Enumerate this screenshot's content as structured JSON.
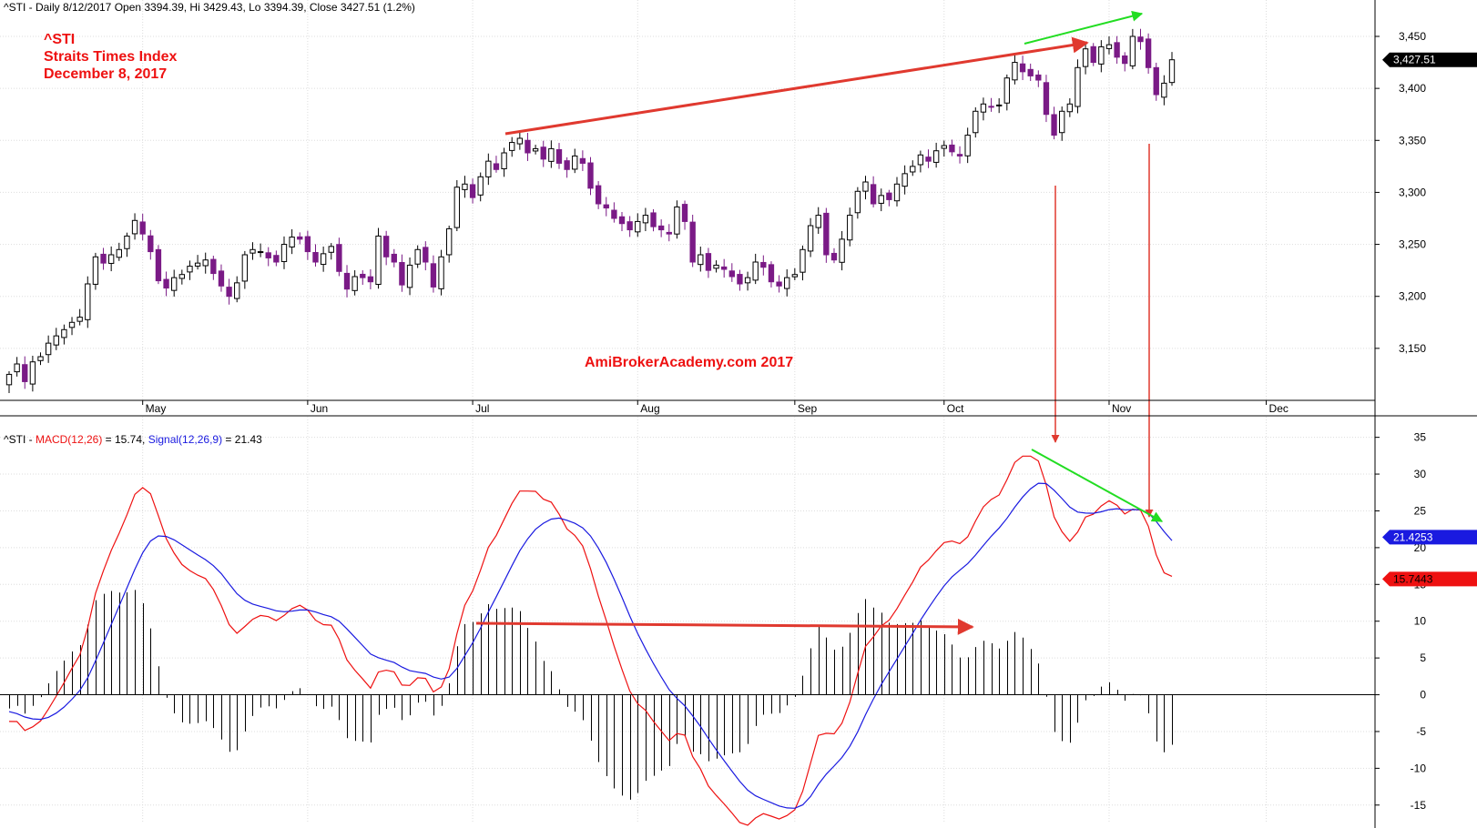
{
  "header": {
    "price_label": "^STI - Daily 8/12/2017 Open 3394.39, Hi 3429.43, Lo 3394.39, Close 3427.51 (1.2%)",
    "macd_prefix": "^STI - ",
    "macd_label": "MACD(12,26)",
    "macd_value": " = 15.74, ",
    "signal_label": "Signal(12,26,9)",
    "signal_value": " = 21.43"
  },
  "annotation": {
    "symbol": "^STI",
    "name": "Straits Times Index",
    "date": "December 8, 2017",
    "watermark": "AmiBrokerAcademy.com  2017"
  },
  "colors": {
    "bull_candle": "#ffffff",
    "bear_candle": "#7a1a86",
    "macd_line": "#ee1111",
    "signal_line": "#1a1ae0",
    "histogram": "#000000",
    "trend_red": "#e0392f",
    "trend_green": "#22dd22",
    "grid": "#dddddd"
  },
  "chart_data": [
    {
      "type": "candlestick",
      "title": "^STI - Daily 8/12/2017 Open 3394.39, Hi 3429.43, Lo 3394.39, Close 3427.51 (1.2%)",
      "x_ticks": [
        "May",
        "Jun",
        "Jul",
        "Aug",
        "Sep",
        "Oct",
        "Nov",
        "Dec"
      ],
      "x_tick_index": [
        17,
        38,
        59,
        80,
        100,
        119,
        140,
        160
      ],
      "y_ticks": [
        "3,150",
        "3,200",
        "3,250",
        "3,300",
        "3,350",
        "3,400",
        "3,450"
      ],
      "y_tick_values": [
        3150,
        3200,
        3250,
        3300,
        3350,
        3400,
        3450
      ],
      "ylim": [
        3100,
        3485
      ],
      "last_value_label": "3,427.51",
      "last_value": 3427.51,
      "grid": true,
      "closes": [
        3125,
        3135,
        3118,
        3137,
        3142,
        3155,
        3162,
        3168,
        3175,
        3180,
        3212,
        3238,
        3232,
        3240,
        3245,
        3258,
        3273,
        3260,
        3243,
        3215,
        3208,
        3218,
        3221,
        3229,
        3232,
        3235,
        3222,
        3210,
        3200,
        3213,
        3240,
        3245,
        3243,
        3237,
        3233,
        3250,
        3257,
        3255,
        3243,
        3233,
        3241,
        3248,
        3224,
        3207,
        3219,
        3218,
        3214,
        3258,
        3238,
        3233,
        3211,
        3230,
        3245,
        3233,
        3209,
        3238,
        3265,
        3305,
        3308,
        3295,
        3315,
        3330,
        3322,
        3338,
        3348,
        3352,
        3338,
        3342,
        3332,
        3342,
        3328,
        3322,
        3335,
        3328,
        3304,
        3289,
        3285,
        3275,
        3270,
        3264,
        3272,
        3278,
        3267,
        3264,
        3260,
        3286,
        3272,
        3233,
        3240,
        3225,
        3230,
        3226,
        3219,
        3212,
        3218,
        3233,
        3228,
        3214,
        3210,
        3218,
        3221,
        3245,
        3268,
        3278,
        3240,
        3235,
        3255,
        3278,
        3301,
        3310,
        3289,
        3297,
        3293,
        3308,
        3318,
        3325,
        3336,
        3330,
        3340,
        3345,
        3339,
        3335,
        3355,
        3378,
        3385,
        3382,
        3384,
        3410,
        3425,
        3416,
        3412,
        3408,
        3375,
        3355,
        3378,
        3385,
        3420,
        3438,
        3425,
        3440,
        3442,
        3430,
        3424,
        3450,
        3445,
        3420,
        3394,
        3405,
        3427.51
      ]
    },
    {
      "type": "line",
      "title": "^STI - MACD(12,26) = 15.74, Signal(12,26,9) = 21.43",
      "series": [
        {
          "name": "MACD(12,26)",
          "last": 15.74,
          "last_label": "15.7443"
        },
        {
          "name": "Signal(12,26,9)",
          "last": 21.43,
          "last_label": "21.4253"
        }
      ],
      "y_ticks": [
        "-15",
        "-10",
        "-5",
        "0",
        "5",
        "10",
        "15",
        "20",
        "25",
        "30",
        "35"
      ],
      "y_tick_values": [
        -15,
        -10,
        -5,
        0,
        5,
        10,
        15,
        20,
        25,
        30,
        35
      ],
      "ylim": [
        -17.5,
        37.8
      ],
      "grid": true
    }
  ]
}
